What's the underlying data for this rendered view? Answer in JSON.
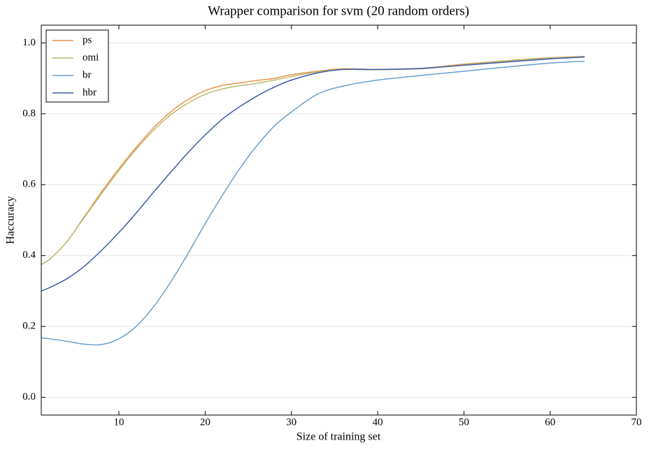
{
  "chart_data": {
    "type": "line",
    "title": "Wrapper comparison for svm (20 random orders)",
    "x_label": "Size of training set",
    "y_label": "Haccuracy",
    "x": [
      1,
      2,
      4,
      6,
      8,
      10,
      12,
      14,
      16,
      18,
      20,
      22,
      24,
      26,
      28,
      30,
      33,
      36,
      40,
      45,
      50,
      55,
      60,
      64
    ],
    "series": [
      {
        "name": "ps",
        "color": "#e8944c",
        "values": [
          0.375,
          0.39,
          0.44,
          0.51,
          0.58,
          0.645,
          0.705,
          0.76,
          0.805,
          0.84,
          0.865,
          0.88,
          0.887,
          0.894,
          0.9,
          0.91,
          0.92,
          0.927,
          0.925,
          0.928,
          0.94,
          0.95,
          0.958,
          0.962
        ]
      },
      {
        "name": "omi",
        "color": "#b8b96e",
        "values": [
          0.375,
          0.39,
          0.44,
          0.508,
          0.575,
          0.64,
          0.7,
          0.753,
          0.797,
          0.83,
          0.855,
          0.87,
          0.879,
          0.886,
          0.895,
          0.905,
          0.918,
          0.925,
          0.924,
          0.927,
          0.938,
          0.949,
          0.957,
          0.961
        ]
      },
      {
        "name": "br",
        "color": "#6a9fcf",
        "values": [
          0.168,
          0.165,
          0.158,
          0.15,
          0.149,
          0.165,
          0.2,
          0.255,
          0.325,
          0.405,
          0.49,
          0.57,
          0.645,
          0.71,
          0.765,
          0.805,
          0.855,
          0.878,
          0.895,
          0.908,
          0.92,
          0.932,
          0.943,
          0.948
        ]
      },
      {
        "name": "hbr",
        "color": "#3c5ca8",
        "values": [
          0.3,
          0.31,
          0.335,
          0.37,
          0.415,
          0.465,
          0.52,
          0.578,
          0.635,
          0.69,
          0.74,
          0.785,
          0.82,
          0.85,
          0.875,
          0.895,
          0.915,
          0.925,
          0.925,
          0.928,
          0.937,
          0.946,
          0.955,
          0.96
        ]
      }
    ],
    "xlim": [
      1,
      70
    ],
    "ylim": [
      -0.05,
      1.05
    ],
    "xticks": [
      10,
      20,
      30,
      40,
      50,
      60,
      70
    ],
    "yticks": [
      {
        "value": 0,
        "label": "0.0"
      },
      0.2,
      0.4,
      0.6,
      0.8,
      {
        "value": 1,
        "label": "1.0"
      }
    ],
    "grid": true,
    "legend": "upper left"
  }
}
